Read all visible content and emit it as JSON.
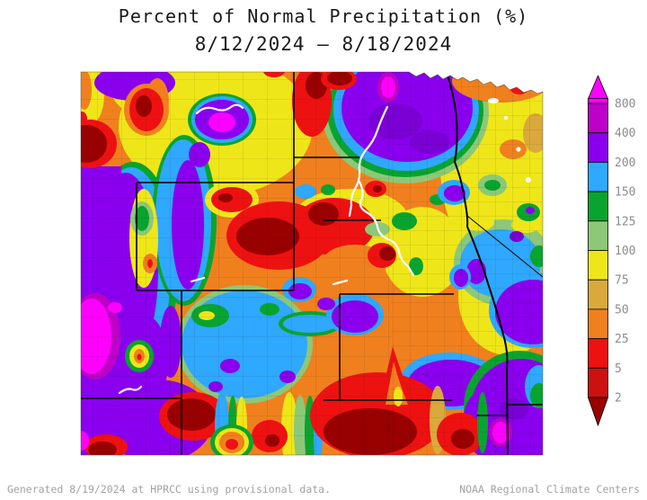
{
  "title": {
    "line1": "Percent of Normal Precipitation (%)",
    "line2": "8/12/2024 – 8/18/2024"
  },
  "legend": {
    "tick_labels": [
      "800",
      "400",
      "200",
      "150",
      "125",
      "100",
      "75",
      "50",
      "25",
      "5",
      "2"
    ],
    "band_colors": [
      "#FF00FF",
      "#BE00C8",
      "#8A00EE",
      "#2FA8FF",
      "#09A42F",
      "#8CC878",
      "#EFE619",
      "#D9A93C",
      "#F0801E",
      "#EE1111",
      "#CC1111",
      "#990000"
    ],
    "label_color": "#8C8C8C"
  },
  "footer": {
    "left": "Generated 8/19/2024 at HPRCC using provisional data.",
    "right": "NOAA Regional Climate Centers"
  }
}
